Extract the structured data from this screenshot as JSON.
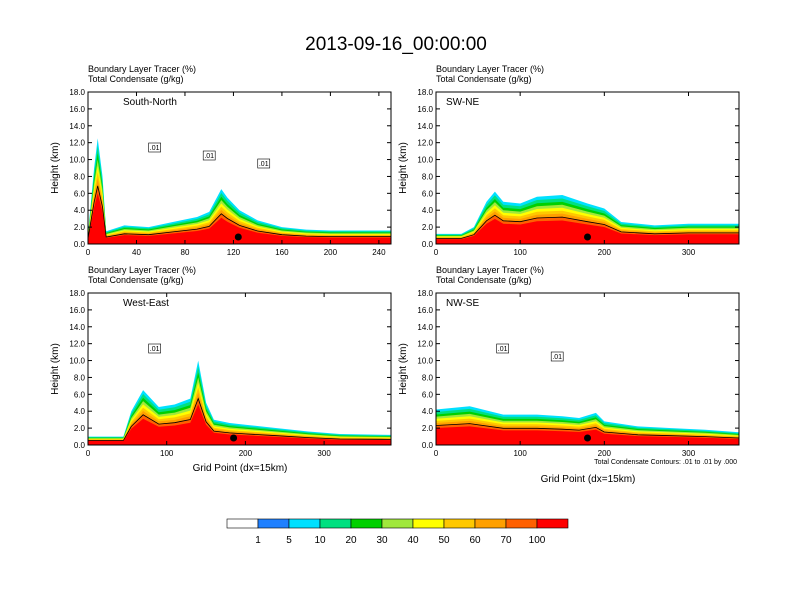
{
  "title": "2013-09-16_00:00:00",
  "colors": {
    "fill_palette": [
      "#ffffff",
      "#1f80ff",
      "#00e0ff",
      "#00e080",
      "#00d000",
      "#a0e83c",
      "#ffff00",
      "#ffc800",
      "#ffa000",
      "#ff6000",
      "#ff0000"
    ]
  },
  "footnote": "Total Condensate Contours: .01 to .01 by .000",
  "xlabel": "Grid Point (dx=15km)",
  "colorbar": {
    "levels": [
      "1",
      "5",
      "10",
      "20",
      "30",
      "40",
      "50",
      "60",
      "70",
      "100"
    ]
  },
  "chart_data": [
    {
      "type": "area",
      "panel_label": "South-North",
      "subtitle_lines": [
        "Boundary Layer Tracer   (%)",
        "Total Condensate   (g/kg)"
      ],
      "ylabel": "Height (km)",
      "ylim": [
        0,
        18
      ],
      "yticks": [
        "0.0",
        "2.0",
        "4.0",
        "6.0",
        "8.0",
        "10.0",
        "12.0",
        "14.0",
        "16.0",
        "18.0"
      ],
      "xlim": [
        0,
        250
      ],
      "xticks": [
        0,
        40,
        80,
        120,
        160,
        200,
        240
      ],
      "contour_labels": [
        ".01",
        ".01",
        ".01"
      ],
      "pbl_top_km": [
        [
          0,
          1.2
        ],
        [
          5,
          9
        ],
        [
          8,
          12.5
        ],
        [
          12,
          8
        ],
        [
          15,
          1.5
        ],
        [
          30,
          2.2
        ],
        [
          50,
          2
        ],
        [
          70,
          2.6
        ],
        [
          90,
          3.2
        ],
        [
          100,
          3.8
        ],
        [
          110,
          6.5
        ],
        [
          115,
          5.5
        ],
        [
          125,
          4
        ],
        [
          140,
          2.8
        ],
        [
          160,
          2
        ],
        [
          180,
          1.7
        ],
        [
          200,
          1.6
        ],
        [
          250,
          1.6
        ]
      ],
      "marker_x": 124
    },
    {
      "type": "area",
      "panel_label": "SW-NE",
      "subtitle_lines": [
        "Boundary Layer Tracer   (%)",
        "Total Condensate   (g/kg)"
      ],
      "ylabel": "Height (km)",
      "ylim": [
        0,
        18
      ],
      "yticks": [
        "0.0",
        "2.0",
        "4.0",
        "6.0",
        "8.0",
        "10.0",
        "12.0",
        "14.0",
        "16.0",
        "18.0"
      ],
      "xlim": [
        0,
        360
      ],
      "xticks": [
        0,
        100,
        200,
        300
      ],
      "contour_labels": [],
      "pbl_top_km": [
        [
          0,
          1.2
        ],
        [
          30,
          1.2
        ],
        [
          45,
          2
        ],
        [
          60,
          5
        ],
        [
          70,
          6.2
        ],
        [
          80,
          5
        ],
        [
          100,
          4.8
        ],
        [
          120,
          5.6
        ],
        [
          150,
          5.8
        ],
        [
          180,
          4.8
        ],
        [
          200,
          4.2
        ],
        [
          220,
          2.6
        ],
        [
          260,
          2.2
        ],
        [
          300,
          2.4
        ],
        [
          360,
          2.4
        ]
      ],
      "marker_x": 180
    },
    {
      "type": "area",
      "panel_label": "West-East",
      "subtitle_lines": [
        "Boundary Layer Tracer   (%)",
        "Total Condensate   (g/kg)"
      ],
      "ylabel": "Height (km)",
      "ylim": [
        0,
        18
      ],
      "yticks": [
        "0.0",
        "2.0",
        "4.0",
        "6.0",
        "8.0",
        "10.0",
        "12.0",
        "14.0",
        "16.0",
        "18.0"
      ],
      "xlim": [
        0,
        385
      ],
      "xticks": [
        0,
        100,
        200,
        300
      ],
      "contour_labels": [
        ".01"
      ],
      "pbl_top_km": [
        [
          0,
          1
        ],
        [
          45,
          1
        ],
        [
          55,
          4
        ],
        [
          70,
          6.5
        ],
        [
          90,
          4.5
        ],
        [
          110,
          4.8
        ],
        [
          130,
          5.5
        ],
        [
          140,
          10
        ],
        [
          150,
          5
        ],
        [
          160,
          3
        ],
        [
          180,
          2.6
        ],
        [
          200,
          2.4
        ],
        [
          240,
          2
        ],
        [
          280,
          1.6
        ],
        [
          320,
          1.3
        ],
        [
          385,
          1.2
        ]
      ],
      "marker_x": 185
    },
    {
      "type": "area",
      "panel_label": "NW-SE",
      "subtitle_lines": [
        "Boundary Layer Tracer   (%)",
        "Total Condensate   (g/kg)"
      ],
      "ylabel": "Height (km)",
      "ylim": [
        0,
        18
      ],
      "yticks": [
        "0.0",
        "2.0",
        "4.0",
        "6.0",
        "8.0",
        "10.0",
        "12.0",
        "14.0",
        "16.0",
        "18.0"
      ],
      "xlim": [
        0,
        360
      ],
      "xticks": [
        0,
        100,
        200,
        300
      ],
      "contour_labels": [
        ".01",
        ".01"
      ],
      "pbl_top_km": [
        [
          0,
          4.2
        ],
        [
          40,
          4.6
        ],
        [
          80,
          3.6
        ],
        [
          120,
          3.6
        ],
        [
          150,
          3.4
        ],
        [
          170,
          3.2
        ],
        [
          190,
          3.8
        ],
        [
          200,
          2.8
        ],
        [
          240,
          2.2
        ],
        [
          280,
          2
        ],
        [
          320,
          1.8
        ],
        [
          360,
          1.5
        ]
      ],
      "marker_x": 180
    }
  ]
}
